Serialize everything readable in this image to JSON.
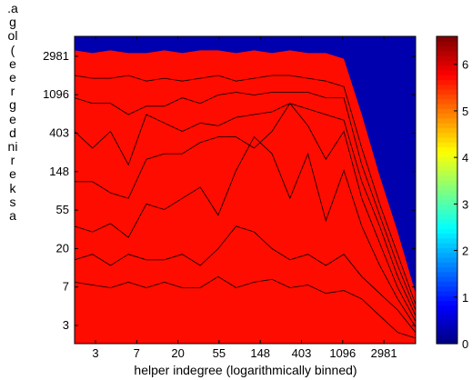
{
  "chart_data": {
    "type": "heatmap",
    "subtype": "filled-contour",
    "xlabel": "helper indegree (logarithmically binned)",
    "ylabel": ".agol( eergedni reksa",
    "x_tick_labels": [
      "3",
      "7",
      "20",
      "55",
      "148",
      "403",
      "1096",
      "2981"
    ],
    "y_tick_labels": [
      "3",
      "7",
      "20",
      "55",
      "148",
      "403",
      "1096",
      "2981"
    ],
    "x_scale": "log",
    "y_scale": "log",
    "colorbar": {
      "tick_labels": [
        "0",
        "1",
        "2",
        "3",
        "4",
        "5",
        "6"
      ],
      "range": [
        0,
        6.6
      ],
      "colormap": "jet"
    },
    "contour_levels": [
      0.6,
      1.2,
      1.8,
      2.4,
      3.0,
      3.6,
      4.2,
      4.8,
      5.4,
      6.0
    ],
    "level_boundaries": [
      [
        1.1,
        1.05,
        1.0,
        1.1,
        1.0,
        1.1,
        1.0,
        1.0,
        1.2,
        1.0,
        1.1,
        1.15,
        1.0,
        1.05,
        0.9,
        0.95,
        0.8,
        0.5,
        0.2,
        0.1
      ],
      [
        1.5,
        1.6,
        1.4,
        1.6,
        1.5,
        1.5,
        1.6,
        1.4,
        1.7,
        2.1,
        2.0,
        1.7,
        1.5,
        1.6,
        1.4,
        1.6,
        1.2,
        0.9,
        0.6,
        0.2
      ],
      [
        2.1,
        2.0,
        2.15,
        1.9,
        2.5,
        2.4,
        2.6,
        2.8,
        2.3,
        3.1,
        3.7,
        3.4,
        2.6,
        3.4,
        2.2,
        3.1,
        2.1,
        1.4,
        0.8,
        0.3
      ],
      [
        2.9,
        2.9,
        2.7,
        2.6,
        3.3,
        3.4,
        3.4,
        3.6,
        3.7,
        3.7,
        3.5,
        3.8,
        4.3,
        3.9,
        3.3,
        3.8,
        2.6,
        1.8,
        1.0,
        0.4
      ],
      [
        3.8,
        3.5,
        3.8,
        3.2,
        4.1,
        3.95,
        3.8,
        3.95,
        3.9,
        4.05,
        4.1,
        4.15,
        4.3,
        4.2,
        4.1,
        4.0,
        2.9,
        2.1,
        1.2,
        0.5
      ],
      [
        4.4,
        4.3,
        4.3,
        4.1,
        4.25,
        4.25,
        4.4,
        4.3,
        4.45,
        4.5,
        4.45,
        4.5,
        4.5,
        4.5,
        4.4,
        4.4,
        3.2,
        2.3,
        1.4,
        0.6
      ],
      [
        4.8,
        4.75,
        4.75,
        4.8,
        4.7,
        4.75,
        4.7,
        4.75,
        4.8,
        4.7,
        4.75,
        4.8,
        4.8,
        4.75,
        4.7,
        4.6,
        3.5,
        2.5,
        1.6,
        0.7
      ],
      [
        5.0,
        4.9,
        5.0,
        5.0,
        5.05,
        4.95,
        5.0,
        5.0,
        5.0,
        5.0,
        4.95,
        5.1,
        5.1,
        5.0,
        5.0,
        4.9,
        3.8,
        2.8,
        1.8,
        0.8
      ],
      [
        5.25,
        5.2,
        5.25,
        5.2,
        5.2,
        5.25,
        5.2,
        5.25,
        5.25,
        5.2,
        5.25,
        5.2,
        5.25,
        5.2,
        5.2,
        5.1,
        4.1,
        3.0,
        2.0,
        0.9
      ]
    ]
  }
}
